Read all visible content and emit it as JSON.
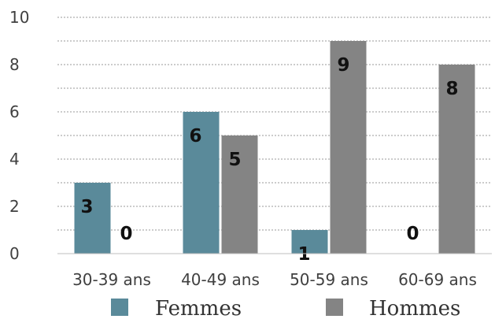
{
  "chart_data": {
    "type": "bar",
    "title": "",
    "xlabel": "",
    "ylabel": "",
    "categories": [
      "30-39 ans",
      "40-49 ans",
      "50-59 ans",
      "60-69 ans"
    ],
    "series": [
      {
        "name": "Femmes",
        "values": [
          3,
          6,
          1,
          0
        ],
        "color": "#5a8a9a"
      },
      {
        "name": "Hommes",
        "values": [
          0,
          5,
          9,
          8
        ],
        "color": "#848484"
      }
    ],
    "ylim": [
      0,
      10
    ],
    "yticks": [
      0,
      2,
      4,
      6,
      8,
      10
    ],
    "grid": true,
    "legend": "bottom",
    "data_labels": true
  }
}
